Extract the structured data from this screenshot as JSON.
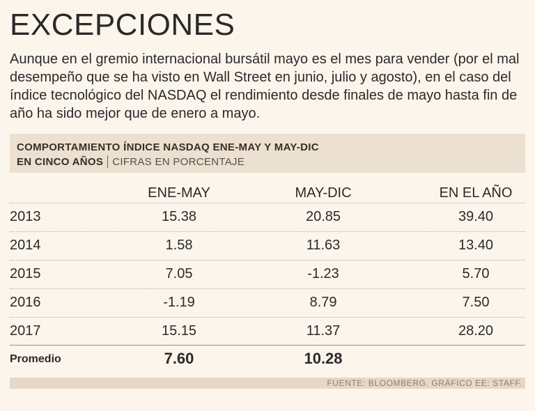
{
  "title": "EXCEPCIONES",
  "intro": "Aunque en el gremio internacional bursátil mayo es el mes para vender (por el mal desempeño que se ha visto en Wall Street en junio, julio y agosto), en el caso del índice tecnológico del NASDAQ el rendimiento desde finales de mayo hasta fin de año ha sido mejor que de enero a mayo.",
  "table_header": {
    "line1": "COMPORTAMIENTO ÍNDICE NASDAQ ENE-MAY Y MAY-DIC",
    "line2_bold": "EN CINCO AÑOS",
    "line2_light": "CIFRAS EN PORCENTAJE"
  },
  "columns": [
    "ENE-MAY",
    "MAY-DIC",
    "EN EL AÑO"
  ],
  "rows": [
    {
      "year": "2013",
      "ene_may": "15.38",
      "may_dic": "20.85",
      "anio": "39.40"
    },
    {
      "year": "2014",
      "ene_may": "1.58",
      "may_dic": "11.63",
      "anio": "13.40"
    },
    {
      "year": "2015",
      "ene_may": "7.05",
      "may_dic": "-1.23",
      "anio": "5.70"
    },
    {
      "year": "2016",
      "ene_may": "-1.19",
      "may_dic": "8.79",
      "anio": "7.50"
    },
    {
      "year": "2017",
      "ene_may": "15.15",
      "may_dic": "11.37",
      "anio": "28.20"
    }
  ],
  "average": {
    "label": "Promedio",
    "ene_may": "7.60",
    "may_dic": "10.28"
  },
  "footer": "FUENTE: BLOOMBERG. GRÁFICO EE: STAFF."
}
